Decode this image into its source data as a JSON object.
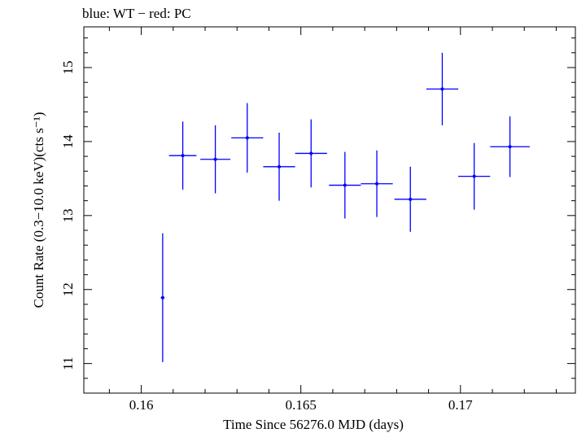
{
  "header": {
    "title": "blue: WT − red: PC"
  },
  "chart_data": {
    "type": "scatter",
    "title": "blue: WT − red: PC",
    "xlabel": "Time Since 56276.0 MJD (days)",
    "ylabel": "Count Rate (0.3−10.0 keV)(cts s⁻¹)",
    "xlim": [
      0.1582,
      0.1736
    ],
    "ylim": [
      10.6,
      15.55
    ],
    "xticks": [
      0.16,
      0.165,
      0.17
    ],
    "xtick_labels": [
      "0.16",
      "0.165",
      "0.17"
    ],
    "yticks": [
      11,
      12,
      13,
      14,
      15
    ],
    "ytick_labels": [
      "11",
      "12",
      "13",
      "14",
      "15"
    ],
    "grid": false,
    "series": [
      {
        "color": "#0000ff",
        "points": [
          {
            "x": 0.16067,
            "xerr": 6e-05,
            "y": 11.89,
            "yerr": 0.87
          },
          {
            "x": 0.1613,
            "xerr": 0.00043,
            "y": 13.81,
            "yerr": 0.46
          },
          {
            "x": 0.16232,
            "xerr": 0.00047,
            "y": 13.76,
            "yerr": 0.46
          },
          {
            "x": 0.16332,
            "xerr": 0.0005,
            "y": 14.05,
            "yerr": 0.47
          },
          {
            "x": 0.16432,
            "xerr": 0.0005,
            "y": 13.66,
            "yerr": 0.46
          },
          {
            "x": 0.16532,
            "xerr": 0.0005,
            "y": 13.84,
            "yerr": 0.46
          },
          {
            "x": 0.16638,
            "xerr": 0.0005,
            "y": 13.41,
            "yerr": 0.45
          },
          {
            "x": 0.16738,
            "xerr": 0.0005,
            "y": 13.43,
            "yerr": 0.45
          },
          {
            "x": 0.16843,
            "xerr": 0.0005,
            "y": 13.22,
            "yerr": 0.44
          },
          {
            "x": 0.16943,
            "xerr": 0.0005,
            "y": 14.71,
            "yerr": 0.49
          },
          {
            "x": 0.17043,
            "xerr": 0.0005,
            "y": 13.53,
            "yerr": 0.45
          },
          {
            "x": 0.17155,
            "xerr": 0.00062,
            "y": 13.93,
            "yerr": 0.41
          }
        ]
      }
    ]
  }
}
